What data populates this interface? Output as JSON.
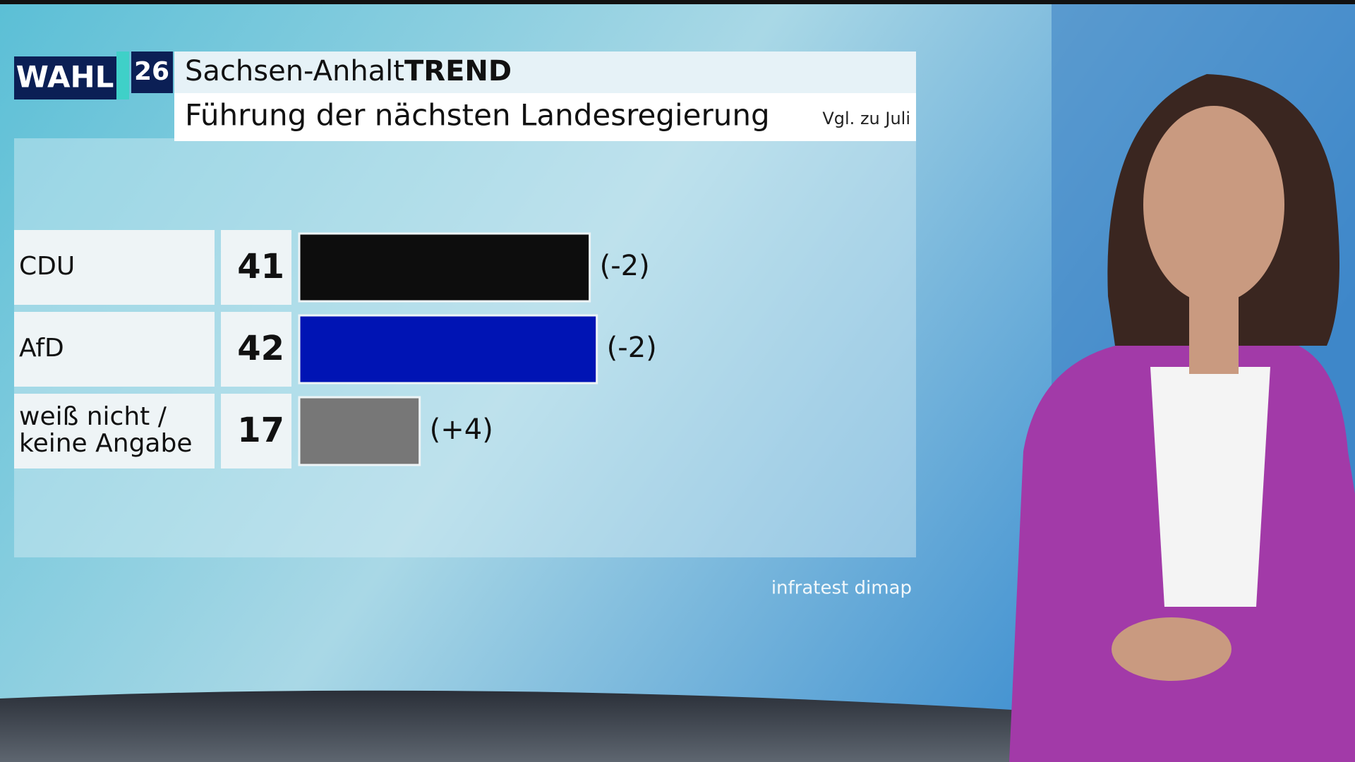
{
  "chart_data": {
    "type": "bar",
    "orientation": "horizontal",
    "logo": {
      "word": "WAHL",
      "number": "26"
    },
    "title": "Sachsen-Anhalt",
    "title_suffix": "TREND",
    "subtitle": "Führung der nächsten Landesregierung",
    "comparison_note": "Vgl. zu Juli",
    "source": "infratest dimap",
    "categories": [
      [
        "CDU"
      ],
      [
        "AfD"
      ],
      [
        "weiß nicht /",
        "keine Angabe"
      ]
    ],
    "values": [
      41,
      42,
      17
    ],
    "colors": [
      "#0d0d0d",
      "#0014b4",
      "#777777"
    ],
    "change_labels": [
      "(-2)",
      "(-2)",
      "(+4)"
    ]
  }
}
